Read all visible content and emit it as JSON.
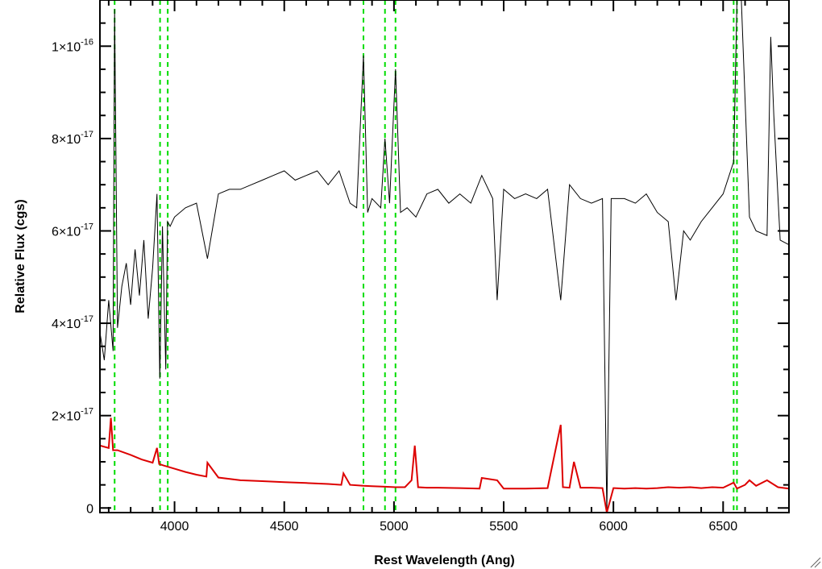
{
  "chart_data": {
    "type": "line",
    "title": "",
    "xlabel": "Rest Wavelength (Ang)",
    "ylabel": "Relative Flux (cgs)",
    "xlim": [
      3660,
      6800
    ],
    "ylim": [
      -1e-18,
      1.1e-16
    ],
    "x_ticks": [
      4000,
      4500,
      5000,
      5500,
      6000,
      6500
    ],
    "x_tick_labels": [
      "4000",
      "4500",
      "5000",
      "5500",
      "6000",
      "6500"
    ],
    "y_ticks": [
      0,
      2e-17,
      4e-17,
      6e-17,
      8e-17,
      1e-16
    ],
    "y_tick_labels": [
      {
        "mantissa": "0",
        "exponent": ""
      },
      {
        "mantissa": "2×10",
        "exponent": "-17"
      },
      {
        "mantissa": "4×10",
        "exponent": "-17"
      },
      {
        "mantissa": "6×10",
        "exponent": "-17"
      },
      {
        "mantissa": "8×10",
        "exponent": "-17"
      },
      {
        "mantissa": "1×10",
        "exponent": "-16"
      }
    ],
    "grid": false,
    "series": [
      {
        "color": "#000000",
        "x": [
          3660,
          3680,
          3700,
          3720,
          3727,
          3740,
          3760,
          3780,
          3800,
          3820,
          3840,
          3860,
          3880,
          3900,
          3920,
          3933,
          3945,
          3960,
          3968,
          3980,
          4000,
          4050,
          4100,
          4150,
          4200,
          4250,
          4300,
          4350,
          4400,
          4450,
          4500,
          4550,
          4600,
          4650,
          4700,
          4750,
          4800,
          4830,
          4861,
          4880,
          4900,
          4940,
          4959,
          4980,
          5007,
          5030,
          5060,
          5100,
          5150,
          5200,
          5250,
          5300,
          5350,
          5400,
          5450,
          5470,
          5500,
          5550,
          5600,
          5650,
          5700,
          5760,
          5800,
          5850,
          5900,
          5950,
          5970,
          5990,
          6050,
          6100,
          6150,
          6200,
          6250,
          6285,
          6320,
          6350,
          6400,
          6450,
          6500,
          6548,
          6563,
          6583,
          6620,
          6650,
          6700,
          6717,
          6731,
          6760,
          6800
        ],
        "y": [
          3.8e-17,
          3.2e-17,
          4.5e-17,
          3.4e-17,
          1.08e-16,
          3.9e-17,
          4.8e-17,
          5.3e-17,
          4.4e-17,
          5.6e-17,
          4.6e-17,
          5.8e-17,
          4.1e-17,
          5.2e-17,
          6.8e-17,
          2.8e-17,
          6.1e-17,
          3e-17,
          6.2e-17,
          6.1e-17,
          6.3e-17,
          6.5e-17,
          6.6e-17,
          5.4e-17,
          6.8e-17,
          6.9e-17,
          6.9e-17,
          7e-17,
          7.1e-17,
          7.2e-17,
          7.3e-17,
          7.1e-17,
          7.2e-17,
          7.3e-17,
          7e-17,
          7.3e-17,
          6.6e-17,
          6.5e-17,
          9.8e-17,
          6.4e-17,
          6.7e-17,
          6.5e-17,
          8e-17,
          6.6e-17,
          9.5e-17,
          6.4e-17,
          6.5e-17,
          6.3e-17,
          6.8e-17,
          6.9e-17,
          6.6e-17,
          6.8e-17,
          6.6e-17,
          7.2e-17,
          6.7e-17,
          4.5e-17,
          6.9e-17,
          6.7e-17,
          6.8e-17,
          6.7e-17,
          6.9e-17,
          4.5e-17,
          7e-17,
          6.7e-17,
          6.6e-17,
          6.7e-17,
          -1e-18,
          6.7e-17,
          6.7e-17,
          6.6e-17,
          6.8e-17,
          6.4e-17,
          6.2e-17,
          4.5e-17,
          6e-17,
          5.8e-17,
          6.2e-17,
          6.5e-17,
          6.8e-17,
          7.5e-17,
          1.1e-16,
          1.1e-16,
          6.3e-17,
          6e-17,
          5.9e-17,
          1.02e-16,
          8.5e-17,
          5.8e-17,
          5.7e-17
        ]
      },
      {
        "color": "#dd0000",
        "x": [
          3660,
          3700,
          3710,
          3720,
          3740,
          3800,
          3850,
          3900,
          3920,
          3930,
          3950,
          4000,
          4050,
          4100,
          4145,
          4150,
          4200,
          4300,
          4400,
          4500,
          4600,
          4700,
          4760,
          4770,
          4800,
          4861,
          4900,
          4959,
          5007,
          5050,
          5080,
          5095,
          5110,
          5150,
          5200,
          5300,
          5390,
          5400,
          5470,
          5500,
          5600,
          5700,
          5760,
          5770,
          5800,
          5820,
          5850,
          5900,
          5950,
          5970,
          6000,
          6050,
          6100,
          6150,
          6200,
          6250,
          6300,
          6350,
          6400,
          6450,
          6500,
          6548,
          6563,
          6600,
          6620,
          6650,
          6700,
          6750,
          6800
        ],
        "y": [
          1.35e-17,
          1.3e-17,
          1.95e-17,
          1.25e-17,
          1.25e-17,
          1.15e-17,
          1.05e-17,
          9.8e-18,
          1.3e-17,
          9.5e-18,
          9.2e-18,
          8.5e-18,
          7.8e-18,
          7.2e-18,
          6.8e-18,
          9.8e-18,
          6.6e-18,
          6e-18,
          5.8e-18,
          5.6e-18,
          5.4e-18,
          5.2e-18,
          5e-18,
          7.5e-18,
          5e-18,
          4.8e-18,
          4.7e-18,
          4.6e-18,
          4.5e-18,
          4.5e-18,
          6e-18,
          1.35e-17,
          4.5e-18,
          4.4e-18,
          4.4e-18,
          4.3e-18,
          4.2e-18,
          6.5e-18,
          6e-18,
          4.2e-18,
          4.2e-18,
          4.3e-18,
          1.8e-17,
          4.5e-18,
          4.4e-18,
          1e-17,
          4.4e-18,
          4.4e-18,
          4.3e-18,
          -1e-18,
          4.3e-18,
          4.2e-18,
          4.3e-18,
          4.2e-18,
          4.3e-18,
          4.5e-18,
          4.4e-18,
          4.5e-18,
          4.3e-18,
          4.5e-18,
          4.4e-18,
          5.5e-18,
          4.2e-18,
          5e-18,
          6e-18,
          4.8e-18,
          6e-18,
          4.5e-18,
          4.2e-18
        ]
      }
    ],
    "vertical_markers": {
      "color": "#00dd00",
      "style": "dashed",
      "x": [
        3727,
        3934,
        3969,
        4861,
        4959,
        5007,
        6548,
        6563
      ]
    }
  }
}
